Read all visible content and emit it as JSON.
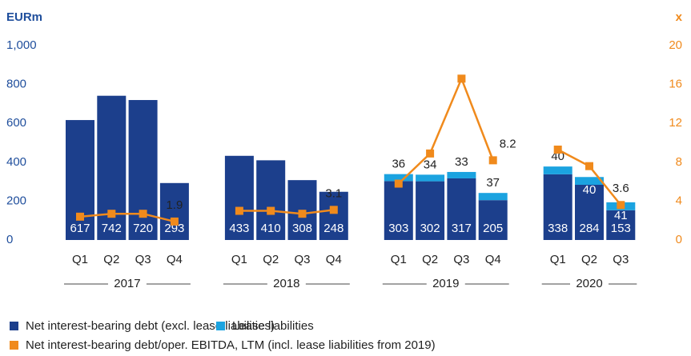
{
  "chart_data": {
    "type": "bar",
    "y_axis_title": "EURm",
    "y2_axis_title": "x",
    "groups": [
      {
        "label": "2017",
        "categories": [
          "Q1",
          "Q2",
          "Q3",
          "Q4"
        ]
      },
      {
        "label": "2018",
        "categories": [
          "Q1",
          "Q2",
          "Q3",
          "Q4"
        ]
      },
      {
        "label": "2019",
        "categories": [
          "Q1",
          "Q2",
          "Q3",
          "Q4"
        ]
      },
      {
        "label": "2020",
        "categories": [
          "Q1",
          "Q2",
          "Q3"
        ]
      }
    ],
    "series": [
      {
        "name": "Net interest-bearing debt (excl. lease liabilities)",
        "color": "#1c3f8c",
        "type": "bar",
        "values": [
          617,
          742,
          720,
          293,
          433,
          410,
          308,
          248,
          303,
          302,
          317,
          205,
          338,
          284,
          153
        ]
      },
      {
        "name": "Lease liabilities",
        "color": "#1ba3e0",
        "type": "bar",
        "values": [
          null,
          null,
          null,
          null,
          null,
          null,
          null,
          null,
          36,
          34,
          33,
          37,
          40,
          40,
          41
        ]
      },
      {
        "name": "Net interest-bearing debt/oper. EBITDA, LTM (incl. lease liabilities from 2019)",
        "color": "#f08a1c",
        "type": "line",
        "axis": "y2",
        "values": [
          2.4,
          2.7,
          2.7,
          1.9,
          3.0,
          3.0,
          2.7,
          3.1,
          5.8,
          8.9,
          16.6,
          8.2,
          9.3,
          7.6,
          3.6
        ],
        "value_labels": [
          null,
          null,
          null,
          "1.9",
          null,
          null,
          null,
          "3.1",
          null,
          null,
          null,
          "8.2",
          null,
          null,
          "3.6"
        ]
      }
    ],
    "stacked": true,
    "ylim": [
      0,
      1000
    ],
    "yticks": [
      0,
      200,
      400,
      600,
      800,
      {
        "value": 1000,
        "label": "1,000"
      }
    ],
    "y2lim": [
      0,
      20
    ],
    "y2ticks": [
      0,
      4,
      8,
      12,
      16,
      20
    ]
  }
}
